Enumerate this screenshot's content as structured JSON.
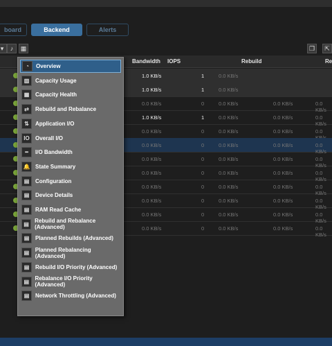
{
  "tabs": [
    {
      "label": "board",
      "state": "inactive"
    },
    {
      "label": "Backend",
      "state": "active"
    },
    {
      "label": "Alerts",
      "state": "inactive"
    }
  ],
  "columns": {
    "bandwidth": "Bandwidth",
    "iops": "IOPS",
    "rebuild": "Rebuild",
    "rebalance_partial": "Re"
  },
  "rows": [
    {
      "bw": "1.0 KB/s",
      "iops": "1",
      "rb1": "0.0 KB/s",
      "rb2": "",
      "re": ""
    },
    {
      "bw": "1.0 KB/s",
      "iops": "1",
      "rb1": "0.0 KB/s",
      "rb2": "",
      "re": ""
    },
    {
      "bw": "0.0 KB/s",
      "iops": "0",
      "rb1": "0.0 KB/s",
      "rb2": "0.0 KB/s",
      "re": "0.0 KB/s"
    },
    {
      "bw": "1.0 KB/s",
      "iops": "1",
      "rb1": "0.0 KB/s",
      "rb2": "0.0 KB/s",
      "re": "0.0 KB/s"
    },
    {
      "bw": "0.0 KB/s",
      "iops": "0",
      "rb1": "0.0 KB/s",
      "rb2": "0.0 KB/s",
      "re": "0.0 KB/s"
    },
    {
      "bw": "0.0 KB/s",
      "iops": "0",
      "rb1": "0.0 KB/s",
      "rb2": "0.0 KB/s",
      "re": "0.0 KB/s"
    },
    {
      "bw": "0.0 KB/s",
      "iops": "0",
      "rb1": "0.0 KB/s",
      "rb2": "0.0 KB/s",
      "re": "0.0 KB/s"
    },
    {
      "bw": "0.0 KB/s",
      "iops": "0",
      "rb1": "0.0 KB/s",
      "rb2": "0.0 KB/s",
      "re": "0.0 KB/s"
    },
    {
      "bw": "0.0 KB/s",
      "iops": "0",
      "rb1": "0.0 KB/s",
      "rb2": "0.0 KB/s",
      "re": "0.0 KB/s"
    },
    {
      "bw": "0.0 KB/s",
      "iops": "0",
      "rb1": "0.0 KB/s",
      "rb2": "0.0 KB/s",
      "re": "0.0 KB/s"
    },
    {
      "bw": "0.0 KB/s",
      "iops": "0",
      "rb1": "0.0 KB/s",
      "rb2": "0.0 KB/s",
      "re": "0.0 KB/s"
    },
    {
      "bw": "0.0 KB/s",
      "iops": "0",
      "rb1": "0.0 KB/s",
      "rb2": "0.0 KB/s",
      "re": "0.0 KB/s"
    }
  ],
  "menu": [
    {
      "label": "Overview",
      "icon": "overview-icon",
      "glyph": "◔"
    },
    {
      "label": "Capacity Usage",
      "icon": "capacity-usage-icon",
      "glyph": "▥"
    },
    {
      "label": "Capacity Health",
      "icon": "capacity-health-icon",
      "glyph": "▦"
    },
    {
      "label": "Rebuild and Rebalance",
      "icon": "rebuild-rebalance-icon",
      "glyph": "⇄"
    },
    {
      "label": "Application I/O",
      "icon": "application-io-icon",
      "glyph": "⇅"
    },
    {
      "label": "Overall I/O",
      "icon": "overall-io-icon",
      "glyph": "IO"
    },
    {
      "label": "I/O Bandwidth",
      "icon": "io-bandwidth-icon",
      "glyph": "┅"
    },
    {
      "label": "State Summary",
      "icon": "state-summary-icon",
      "glyph": "🔔"
    },
    {
      "label": "Configuration",
      "icon": "configuration-icon",
      "glyph": "▤"
    },
    {
      "label": "Device Details",
      "icon": "device-details-icon",
      "glyph": "▤"
    },
    {
      "label": "RAM Read Cache",
      "icon": "ram-read-cache-icon",
      "glyph": "▤"
    },
    {
      "label": "Rebuild and Rebalance (Advanced)",
      "icon": "rebuild-rebalance-advanced-icon",
      "glyph": "▤"
    },
    {
      "label": "Planned Rebuilds (Advanced)",
      "icon": "planned-rebuilds-icon",
      "glyph": "▤"
    },
    {
      "label": "Planned Rebalancing (Advanced)",
      "icon": "planned-rebalancing-icon",
      "glyph": "▤"
    },
    {
      "label": "Rebuild I/O Priority (Advanced)",
      "icon": "rebuild-priority-icon",
      "glyph": "▤"
    },
    {
      "label": "Rebalance I/O Priority (Advanced)",
      "icon": "rebalance-priority-icon",
      "glyph": "▤"
    },
    {
      "label": "Network Throttling (Advanced)",
      "icon": "network-throttling-icon",
      "glyph": "▤"
    }
  ],
  "colors": {
    "accent": "#3a6f9e",
    "menu_bg": "#6a6a6a",
    "status_ok": "#7aa43a"
  }
}
